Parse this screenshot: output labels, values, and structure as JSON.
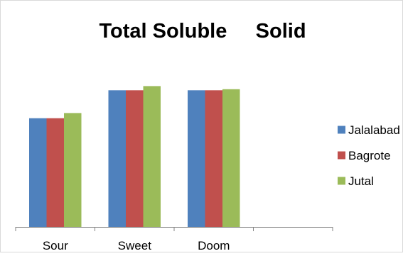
{
  "chart_data": {
    "type": "bar",
    "title": "Total Soluble     Solid",
    "xlabel": "",
    "ylabel": "",
    "categories": [
      "Sour",
      "Sweet",
      "Doom",
      ""
    ],
    "series": [
      {
        "name": "Jalalabad",
        "values": [
          10.5,
          13.2,
          13.2,
          null
        ],
        "color": "#4F81BD"
      },
      {
        "name": "Bagrote",
        "values": [
          10.5,
          13.2,
          13.2,
          null
        ],
        "color": "#C0504D"
      },
      {
        "name": "Jutal",
        "values": [
          11.0,
          13.6,
          13.3,
          null
        ],
        "color": "#9BBB59"
      }
    ],
    "ylim": [
      0,
      20
    ],
    "grid": false,
    "legend": "right"
  }
}
